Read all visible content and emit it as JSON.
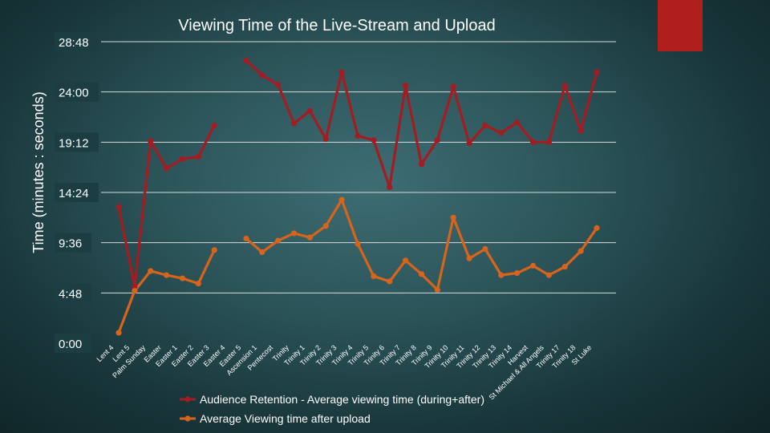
{
  "colors": {
    "accent": "#b01e1e",
    "retention": "#a41c21",
    "upload": "#d8641c",
    "grid": "#d9d9d9",
    "text": "#ffffff"
  },
  "chart_data": {
    "type": "line",
    "title": "Viewing Time of the Live-Stream and Upload",
    "xlabel": "",
    "ylabel": "Time (minutes : seconds)",
    "y_ticks": [
      "0:00",
      "4:48",
      "9:36",
      "14:24",
      "19:12",
      "24:00",
      "28:48"
    ],
    "y_tick_minutes": [
      0,
      4.8,
      9.6,
      14.4,
      19.2,
      24.0,
      28.8
    ],
    "ylim": [
      0,
      28.8
    ],
    "y_units": "minutes",
    "categories": [
      "Lent 4",
      "Lent 5",
      "Palm Sunday",
      "Easter",
      "Easter 1",
      "Easter 2",
      "Easter 3",
      "Easter 4",
      "Easter 5",
      "Ascension 1",
      "Pentecost",
      "Trinity",
      "Trinity 1",
      "Trinity 2",
      "Trinity 3",
      "Trinity 4",
      "Trinity 5",
      "Trinity 6",
      "Trinity 7",
      "Trinity 8",
      "Trinity 9",
      "Trinity 10",
      "Trinity 11",
      "Trinity 12",
      "Trinity 13",
      "Trinity 14",
      "Harvest",
      "St Michael & All Angels",
      "Trinity 17",
      "Trinity 18",
      "St Luke"
    ],
    "series": [
      {
        "name": "Audience Retention - Average viewing time (during+after)",
        "color": "#a41c21",
        "values": [
          13.0,
          5.4,
          19.3,
          16.7,
          17.6,
          17.8,
          20.8,
          null,
          27.0,
          25.6,
          24.7,
          21.0,
          22.2,
          19.5,
          25.9,
          19.8,
          19.4,
          14.9,
          24.6,
          17.1,
          19.4,
          24.5,
          19.1,
          20.8,
          20.1,
          21.1,
          19.2,
          19.2,
          24.6,
          20.3,
          25.9
        ]
      },
      {
        "name": "Average Viewing time after upload",
        "color": "#d8641c",
        "values": [
          1.0,
          5.0,
          6.9,
          6.5,
          6.2,
          5.7,
          8.9,
          null,
          10.0,
          8.7,
          9.8,
          10.5,
          10.1,
          11.2,
          13.7,
          9.5,
          6.4,
          5.9,
          7.9,
          6.6,
          5.1,
          12.0,
          8.1,
          9.0,
          6.5,
          6.7,
          7.4,
          6.5,
          7.3,
          8.8,
          11.0
        ]
      }
    ],
    "legend": "bottom-center"
  }
}
